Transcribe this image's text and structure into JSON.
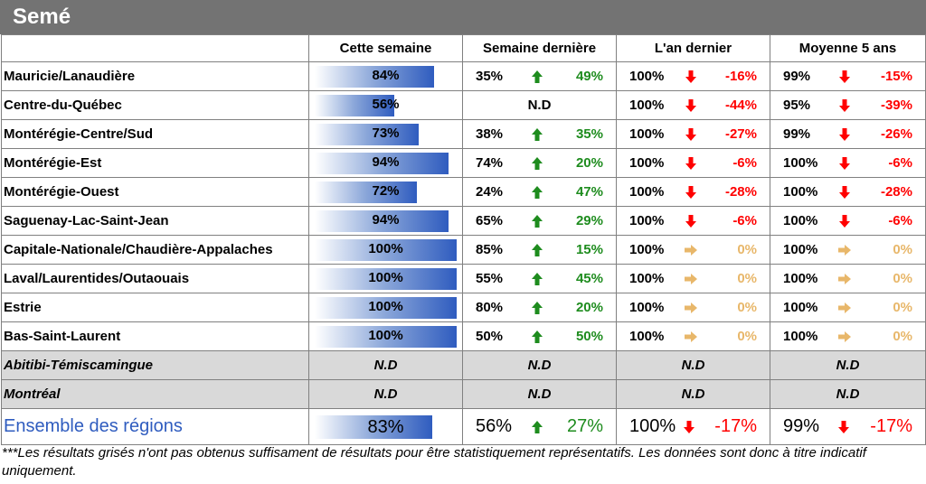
{
  "title": "Semé",
  "headers": [
    "",
    "Cette semaine",
    "Semaine dernière",
    "L'an dernier",
    "Moyenne 5 ans"
  ],
  "colors": {
    "up": "#1e8c1e",
    "down": "#ff0000",
    "flat": "#e8b76a",
    "title_bg": "#737373",
    "grey_row": "#d9d9d9",
    "bar": "#2f5cbf"
  },
  "rows": [
    {
      "region": "Mauricie/Lanaudière",
      "this_week": "84%",
      "this_week_value": 0.84,
      "last_week": {
        "value": "35%",
        "arrow": "up",
        "diff": "49%"
      },
      "last_year": {
        "value": "100%",
        "arrow": "down",
        "diff": "-16%"
      },
      "avg5": {
        "value": "99%",
        "arrow": "down",
        "diff": "-15%"
      }
    },
    {
      "region": "Centre-du-Québec",
      "this_week": "56%",
      "this_week_value": 0.56,
      "last_week": {
        "nd": "N.D"
      },
      "last_year": {
        "value": "100%",
        "arrow": "down",
        "diff": "-44%"
      },
      "avg5": {
        "value": "95%",
        "arrow": "down",
        "diff": "-39%"
      }
    },
    {
      "region": "Montérégie-Centre/Sud",
      "this_week": "73%",
      "this_week_value": 0.73,
      "last_week": {
        "value": "38%",
        "arrow": "up",
        "diff": "35%"
      },
      "last_year": {
        "value": "100%",
        "arrow": "down",
        "diff": "-27%"
      },
      "avg5": {
        "value": "99%",
        "arrow": "down",
        "diff": "-26%"
      }
    },
    {
      "region": "Montérégie-Est",
      "this_week": "94%",
      "this_week_value": 0.94,
      "last_week": {
        "value": "74%",
        "arrow": "up",
        "diff": "20%"
      },
      "last_year": {
        "value": "100%",
        "arrow": "down",
        "diff": "-6%"
      },
      "avg5": {
        "value": "100%",
        "arrow": "down",
        "diff": "-6%"
      }
    },
    {
      "region": "Montérégie-Ouest",
      "this_week": "72%",
      "this_week_value": 0.72,
      "last_week": {
        "value": "24%",
        "arrow": "up",
        "diff": "47%"
      },
      "last_year": {
        "value": "100%",
        "arrow": "down",
        "diff": "-28%"
      },
      "avg5": {
        "value": "100%",
        "arrow": "down",
        "diff": "-28%"
      }
    },
    {
      "region": "Saguenay-Lac-Saint-Jean",
      "this_week": "94%",
      "this_week_value": 0.94,
      "last_week": {
        "value": "65%",
        "arrow": "up",
        "diff": "29%"
      },
      "last_year": {
        "value": "100%",
        "arrow": "down",
        "diff": "-6%"
      },
      "avg5": {
        "value": "100%",
        "arrow": "down",
        "diff": "-6%"
      }
    },
    {
      "region": "Capitale-Nationale/Chaudière-Appalaches",
      "this_week": "100%",
      "this_week_value": 1.0,
      "last_week": {
        "value": "85%",
        "arrow": "up",
        "diff": "15%"
      },
      "last_year": {
        "value": "100%",
        "arrow": "flat",
        "diff": "0%"
      },
      "avg5": {
        "value": "100%",
        "arrow": "flat",
        "diff": "0%"
      }
    },
    {
      "region": "Laval/Laurentides/Outaouais",
      "this_week": "100%",
      "this_week_value": 1.0,
      "last_week": {
        "value": "55%",
        "arrow": "up",
        "diff": "45%"
      },
      "last_year": {
        "value": "100%",
        "arrow": "flat",
        "diff": "0%"
      },
      "avg5": {
        "value": "100%",
        "arrow": "flat",
        "diff": "0%"
      }
    },
    {
      "region": "Estrie",
      "this_week": "100%",
      "this_week_value": 1.0,
      "last_week": {
        "value": "80%",
        "arrow": "up",
        "diff": "20%"
      },
      "last_year": {
        "value": "100%",
        "arrow": "flat",
        "diff": "0%"
      },
      "avg5": {
        "value": "100%",
        "arrow": "flat",
        "diff": "0%"
      }
    },
    {
      "region": "Bas-Saint-Laurent",
      "this_week": "100%",
      "this_week_value": 1.0,
      "last_week": {
        "value": "50%",
        "arrow": "up",
        "diff": "50%"
      },
      "last_year": {
        "value": "100%",
        "arrow": "flat",
        "diff": "0%"
      },
      "avg5": {
        "value": "100%",
        "arrow": "flat",
        "diff": "0%"
      }
    }
  ],
  "grey_rows": [
    {
      "region": "Abitibi-Témiscamingue",
      "cells": [
        "N.D",
        "N.D",
        "N.D",
        "N.D"
      ]
    },
    {
      "region": "Montréal",
      "cells": [
        "N.D",
        "N.D",
        "N.D",
        "N.D"
      ]
    }
  ],
  "total": {
    "region": "Ensemble des régions",
    "this_week": "83%",
    "this_week_value": 0.83,
    "last_week": {
      "value": "56%",
      "arrow": "up",
      "diff": "27%"
    },
    "last_year": {
      "value": "100%",
      "arrow": "down",
      "diff": "-17%"
    },
    "avg5": {
      "value": "99%",
      "arrow": "down",
      "diff": "-17%"
    }
  },
  "footnote": "***Les résultats grisés n'ont pas obtenus suffisament de résultats pour être statistiquement représentatifs. Les données sont donc à titre indicatif uniquement."
}
